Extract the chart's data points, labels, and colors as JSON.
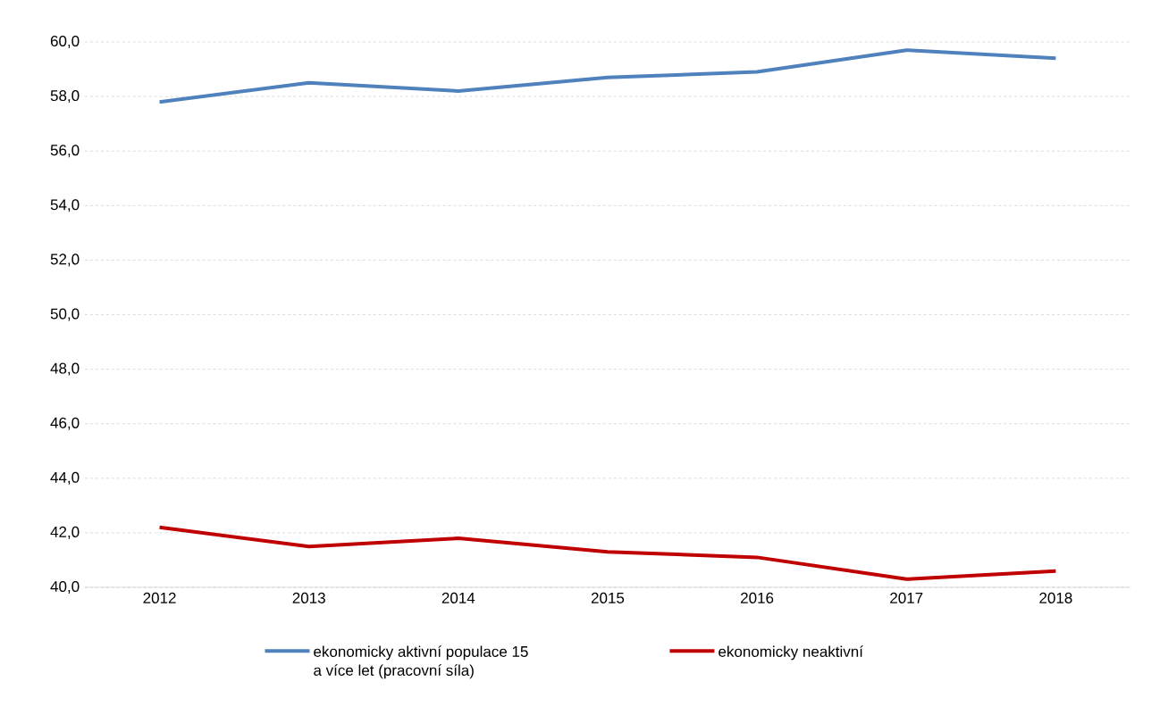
{
  "chart_data": {
    "type": "line",
    "categories": [
      "2012",
      "2013",
      "2014",
      "2015",
      "2016",
      "2017",
      "2018"
    ],
    "series": [
      {
        "name": "ekonomicky aktivní populace 15 a více let (pracovní síla)",
        "color": "#4f81bd",
        "values": [
          57.8,
          58.5,
          58.2,
          58.7,
          58.9,
          59.7,
          59.4
        ]
      },
      {
        "name": "ekonomicky neaktivní",
        "color": "#c00000",
        "values": [
          42.2,
          41.5,
          41.8,
          41.3,
          41.1,
          40.3,
          40.6
        ]
      }
    ],
    "ylim": [
      40,
      60
    ],
    "yticks": [
      {
        "value": 40,
        "label": "40,0"
      },
      {
        "value": 42,
        "label": "42,0"
      },
      {
        "value": 44,
        "label": "44,0"
      },
      {
        "value": 46,
        "label": "46,0"
      },
      {
        "value": 48,
        "label": "48,0"
      },
      {
        "value": 50,
        "label": "50,0"
      },
      {
        "value": 52,
        "label": "52,0"
      },
      {
        "value": 54,
        "label": "54,0"
      },
      {
        "value": 56,
        "label": "56,0"
      },
      {
        "value": 58,
        "label": "58,0"
      },
      {
        "value": 60,
        "label": "60,0"
      }
    ],
    "grid": "y",
    "legend": "bottom"
  }
}
